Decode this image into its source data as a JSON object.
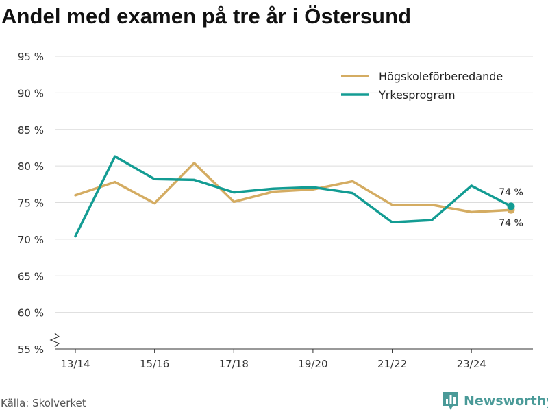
{
  "title": "Andel med examen på tre år i Östersund",
  "source": "Källa: Skolverket",
  "brand": {
    "name": "Newsworthy",
    "icon": "bar-chart-logo-icon",
    "color": "#4a9a98"
  },
  "chart_data": {
    "type": "line",
    "title": "Andel med examen på tre år i Östersund",
    "xlabel": "",
    "ylabel": "",
    "x": [
      "13/14",
      "14/15",
      "15/16",
      "16/17",
      "17/18",
      "18/19",
      "19/20",
      "20/21",
      "21/22",
      "22/23",
      "23/24",
      "24/25"
    ],
    "x_tick_labels": [
      "13/14",
      "15/16",
      "17/18",
      "19/20",
      "21/22",
      "23/24"
    ],
    "y_ticks": [
      55,
      60,
      65,
      70,
      75,
      80,
      85,
      90,
      95
    ],
    "y_tick_labels": [
      "55 %",
      "60 %",
      "65 %",
      "70 %",
      "75 %",
      "80 %",
      "85 %",
      "90 %",
      "95 %"
    ],
    "ylim": [
      55,
      95
    ],
    "grid": true,
    "axis_break": true,
    "legend_position": "top-right",
    "series": [
      {
        "name": "Högskoleförberedande",
        "color": "#d4ac62",
        "values": [
          76.0,
          77.8,
          74.9,
          80.4,
          75.1,
          76.5,
          76.8,
          77.9,
          74.7,
          74.7,
          73.7,
          74.0
        ],
        "end_label": "74 %"
      },
      {
        "name": "Yrkesprogram",
        "color": "#139c93",
        "values": [
          70.4,
          81.3,
          78.2,
          78.1,
          76.4,
          76.9,
          77.1,
          76.3,
          72.3,
          72.6,
          77.3,
          74.5
        ],
        "end_label": "74 %"
      }
    ]
  }
}
